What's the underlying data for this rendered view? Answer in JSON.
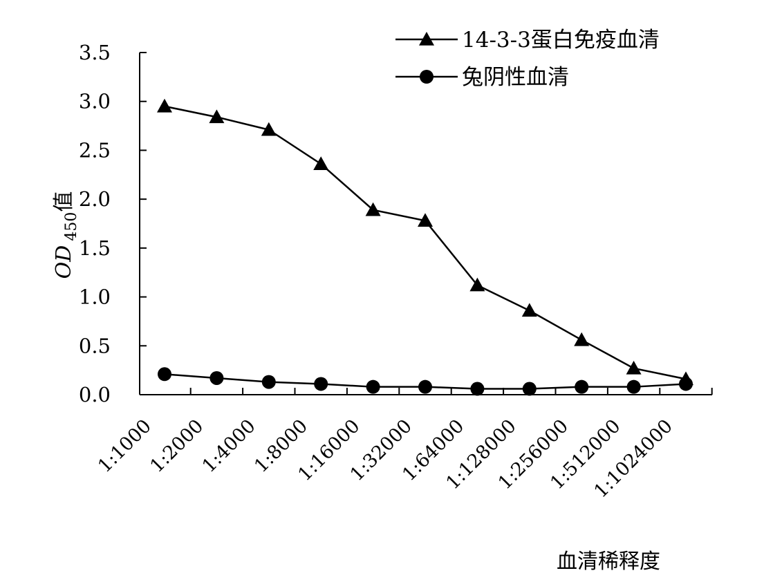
{
  "chart_data": {
    "type": "line",
    "title": "",
    "xlabel": "血清稀释度",
    "ylabel": {
      "main": "OD",
      "subscript": "450",
      "suffix": "值"
    },
    "categories": [
      "1:1000",
      "1:2000",
      "1:4000",
      "1:8000",
      "1:16000",
      "1:32000",
      "1:64000",
      "1:128000",
      "1:256000",
      "1:512000",
      "1:1024000"
    ],
    "y_ticks": [
      "0.0",
      "0.5",
      "1.0",
      "1.5",
      "2.0",
      "2.5",
      "3.0",
      "3.5"
    ],
    "ylim": [
      0,
      3.5
    ],
    "grid": false,
    "legend_position": "top-right",
    "series": [
      {
        "name": "14-3-3蛋白免疫血清",
        "marker": "triangle",
        "color": "#000000",
        "values": [
          2.95,
          2.84,
          2.71,
          2.36,
          1.89,
          1.78,
          1.12,
          0.86,
          0.56,
          0.27,
          0.16
        ]
      },
      {
        "name": "兔阴性血清",
        "marker": "circle",
        "color": "#000000",
        "values": [
          0.21,
          0.17,
          0.13,
          0.11,
          0.08,
          0.08,
          0.06,
          0.06,
          0.08,
          0.08,
          0.11
        ]
      }
    ]
  }
}
